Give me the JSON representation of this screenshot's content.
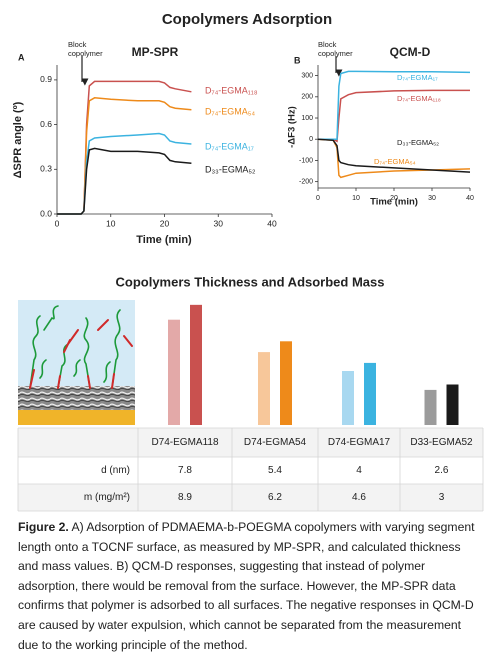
{
  "title": "Copolymers Adsorption",
  "chart_data": [
    {
      "type": "line",
      "panel": "A",
      "title": "MP-SPR",
      "annotation": [
        "Block",
        "copolymer"
      ],
      "x_label": "Time (min)",
      "y_label": "ΔSPR angle (º)",
      "x": [
        0,
        4.5,
        5,
        5.5,
        6,
        7,
        10,
        15,
        19,
        20,
        21,
        22,
        25
      ],
      "xlim": [
        0,
        40
      ],
      "xticks": [
        0,
        10,
        20,
        30,
        40
      ],
      "ylim": [
        0,
        1.0
      ],
      "yticks": [
        {
          "value": 0,
          "label": "0.0"
        },
        0.3,
        0.6,
        0.9
      ],
      "series": [
        {
          "name": "D₇₄-EGMA₁₁₈",
          "color": "#c9514f",
          "values": [
            0,
            0,
            0.02,
            0.6,
            0.86,
            0.89,
            0.89,
            0.89,
            0.89,
            0.88,
            0.85,
            0.84,
            0.82
          ]
        },
        {
          "name": "D₇₄-EGMA₅₄",
          "color": "#ee8a1a",
          "values": [
            0,
            0,
            0.02,
            0.55,
            0.76,
            0.78,
            0.77,
            0.76,
            0.76,
            0.75,
            0.72,
            0.71,
            0.7
          ]
        },
        {
          "name": "D₇₄-EGMA₁₇",
          "color": "#3bb3e0",
          "values": [
            0,
            0,
            0.02,
            0.35,
            0.49,
            0.51,
            0.52,
            0.53,
            0.54,
            0.53,
            0.49,
            0.48,
            0.47
          ]
        },
        {
          "name": "D₃₃-EGMA₅₂",
          "color": "#1a1a1a",
          "values": [
            0,
            0,
            0.02,
            0.3,
            0.43,
            0.44,
            0.42,
            0.42,
            0.41,
            0.4,
            0.36,
            0.35,
            0.34
          ]
        }
      ]
    },
    {
      "type": "line",
      "panel": "B",
      "title": "QCM-D",
      "annotation": [
        "Block",
        "copolymer"
      ],
      "x_label": "Time (min)",
      "y_label": "-ΔF3 (Hz)",
      "x": [
        0,
        4,
        5,
        5.5,
        6,
        8,
        10,
        20,
        30,
        40
      ],
      "xlim": [
        0,
        40
      ],
      "xticks": [
        0,
        10,
        20,
        30,
        40
      ],
      "ylim": [
        -230,
        350
      ],
      "yticks": [
        -200,
        -100,
        0,
        100,
        200,
        300
      ],
      "series": [
        {
          "name": "D₇₄-EGMA₁₁₈",
          "color": "#c9514f",
          "values": [
            0,
            0,
            -10,
            100,
            190,
            210,
            220,
            228,
            230,
            230
          ]
        },
        {
          "name": "D₇₄-EGMA₅₄",
          "color": "#ee8a1a",
          "values": [
            0,
            -5,
            -40,
            -170,
            -180,
            -170,
            -160,
            -150,
            -145,
            -140
          ]
        },
        {
          "name": "D₇₄-EGMA₁₇",
          "color": "#3bb3e0",
          "values": [
            0,
            0,
            0,
            250,
            310,
            320,
            320,
            318,
            318,
            315
          ]
        },
        {
          "name": "D₃₃-EGMA₅₂",
          "color": "#1a1a1a",
          "values": [
            0,
            -5,
            -30,
            -100,
            -110,
            -120,
            -125,
            -135,
            -145,
            -155
          ]
        }
      ]
    },
    {
      "type": "bar",
      "title": "Copolymers Thickness and Adsorbed Mass",
      "categories": [
        "D74-EGMA118",
        "D74-EGMA54",
        "D74-EGMA17",
        "D33-EGMA52"
      ],
      "ylim": [
        0,
        10
      ],
      "series": [
        {
          "name": "d (nm)",
          "colors": [
            "#e3a9a8",
            "#f7c79a",
            "#a8d8f0",
            "#9b9b9b"
          ],
          "values": [
            7.8,
            5.4,
            4,
            2.6
          ]
        },
        {
          "name": "m (mg/m²)",
          "colors": [
            "#c9514f",
            "#ee8a1a",
            "#3bb3e0",
            "#1a1a1a"
          ],
          "values": [
            8.9,
            6.2,
            4.6,
            3
          ]
        }
      ]
    }
  ],
  "caption": {
    "label": "Figure 2.",
    "text": "A) Adsorption of PDMAEMA-b-POEGMA copolymers with varying segment length onto a TOCNF surface, as measured by MP-SPR, and calculated thickness and mass values. B) QCM-D responses, suggesting that instead of polymer adsorption, there would be removal from the surface. However, the MP-SPR data confirms that polymer is adsorbed to all surfaces. The negative responses in QCM-D are caused by water expulsion, which cannot be separated from the measurement due to the working principle of the method."
  }
}
